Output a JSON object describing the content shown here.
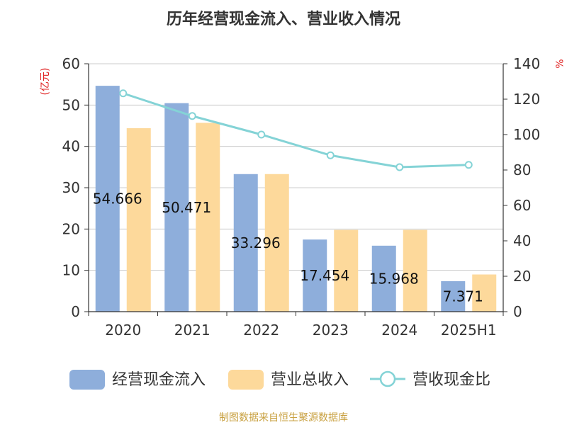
{
  "chart_data": {
    "type": "bar",
    "title": "历年经营现金流入、营业收入情况",
    "categories": [
      "2020",
      "2021",
      "2022",
      "2023",
      "2024",
      "2025H1"
    ],
    "series": [
      {
        "name": "经营现金流入",
        "kind": "bar",
        "axis": "left",
        "color": "#8eaedb",
        "values": [
          54.666,
          50.471,
          33.296,
          17.454,
          15.968,
          7.371
        ],
        "labels": [
          "54.666",
          "50.471",
          "33.296",
          "17.454",
          "15.968",
          "7.371"
        ]
      },
      {
        "name": "营业总收入",
        "kind": "bar",
        "axis": "left",
        "color": "#fdd99b",
        "values": [
          44.4,
          45.7,
          33.3,
          19.8,
          19.8,
          9.0
        ]
      },
      {
        "name": "营收现金比",
        "kind": "line",
        "axis": "right",
        "color": "#84d3d6",
        "values": [
          123.3,
          110.5,
          100.0,
          88.3,
          81.6,
          82.9
        ]
      }
    ],
    "y_left": {
      "label": "(亿元)",
      "ylim": [
        0,
        60
      ],
      "ticks": [
        0,
        10,
        20,
        30,
        40,
        50,
        60
      ]
    },
    "y_right": {
      "label": "%",
      "ylim": [
        0,
        140
      ],
      "ticks": [
        0,
        20,
        40,
        60,
        80,
        100,
        120,
        140
      ]
    },
    "grid": true,
    "legend_position": "bottom"
  },
  "footer": {
    "source": "制图数据来自恒生聚源数据库"
  },
  "colors": {
    "axis_label": "#e02020",
    "source": "#c8a040",
    "text": "#333333",
    "grid": "#cccccc"
  }
}
